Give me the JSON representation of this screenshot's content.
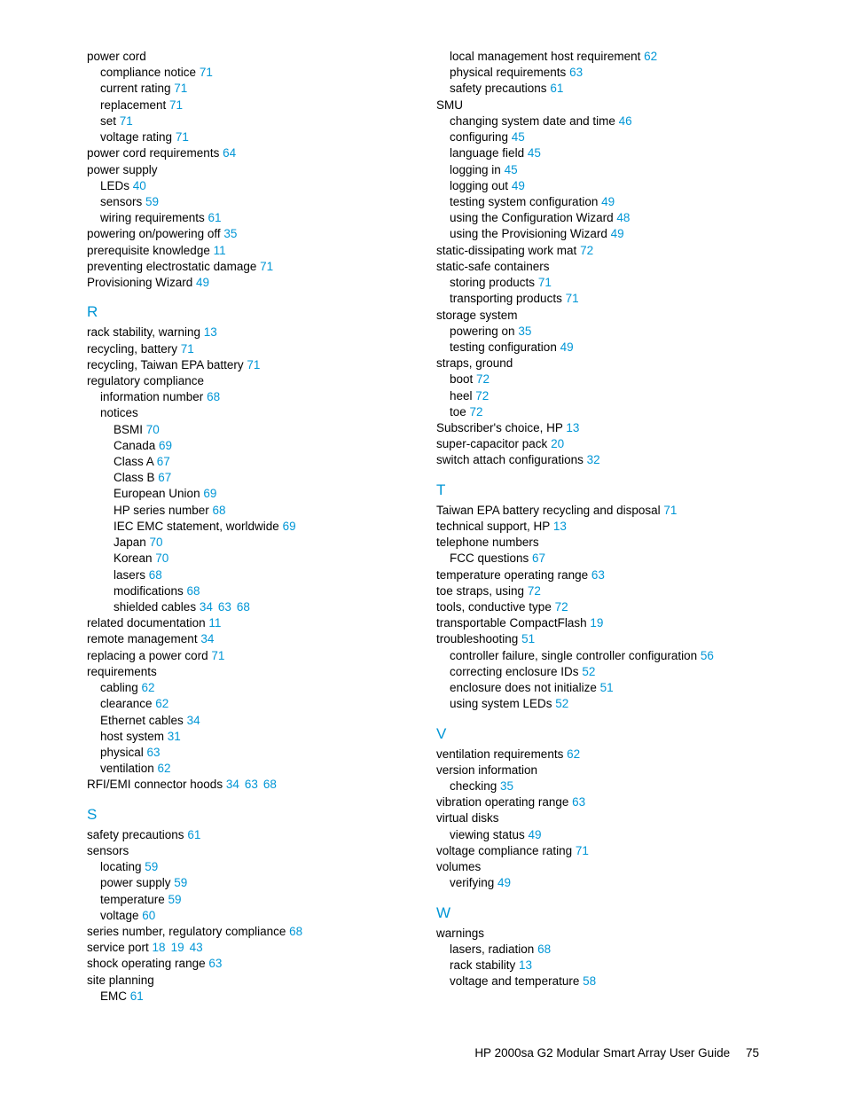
{
  "footer": {
    "title": "HP 2000sa G2 Modular Smart Array User Guide",
    "page": "75"
  },
  "link_color": "#0096d6",
  "text_color": "#000000",
  "background_color": "#ffffff",
  "section_fontsize": 17,
  "body_fontsize": 13.5,
  "left": [
    {
      "t": "power cord",
      "lv": 0
    },
    {
      "t": "compliance notice",
      "lv": 1,
      "p": [
        "71"
      ]
    },
    {
      "t": "current rating",
      "lv": 1,
      "p": [
        "71"
      ]
    },
    {
      "t": "replacement",
      "lv": 1,
      "p": [
        "71"
      ]
    },
    {
      "t": "set",
      "lv": 1,
      "p": [
        "71"
      ]
    },
    {
      "t": "voltage rating",
      "lv": 1,
      "p": [
        "71"
      ]
    },
    {
      "t": "power cord requirements",
      "lv": 0,
      "p": [
        "64"
      ]
    },
    {
      "t": "power supply",
      "lv": 0
    },
    {
      "t": "LEDs",
      "lv": 1,
      "p": [
        "40"
      ]
    },
    {
      "t": "sensors",
      "lv": 1,
      "p": [
        "59"
      ]
    },
    {
      "t": "wiring requirements",
      "lv": 1,
      "p": [
        "61"
      ]
    },
    {
      "t": "powering on/powering off",
      "lv": 0,
      "p": [
        "35"
      ]
    },
    {
      "t": "prerequisite knowledge",
      "lv": 0,
      "p": [
        "11"
      ]
    },
    {
      "t": "preventing electrostatic damage",
      "lv": 0,
      "p": [
        "71"
      ]
    },
    {
      "t": "Provisioning Wizard",
      "lv": 0,
      "p": [
        "49"
      ]
    },
    {
      "head": "R"
    },
    {
      "t": "rack stability, warning",
      "lv": 0,
      "p": [
        "13"
      ]
    },
    {
      "t": "recycling, battery",
      "lv": 0,
      "p": [
        "71"
      ]
    },
    {
      "t": "recycling, Taiwan EPA battery",
      "lv": 0,
      "p": [
        "71"
      ]
    },
    {
      "t": "regulatory compliance",
      "lv": 0
    },
    {
      "t": "information number",
      "lv": 1,
      "p": [
        "68"
      ]
    },
    {
      "t": "notices",
      "lv": 1
    },
    {
      "t": "BSMI",
      "lv": 2,
      "p": [
        "70"
      ]
    },
    {
      "t": "Canada",
      "lv": 2,
      "p": [
        "69"
      ]
    },
    {
      "t": "Class A",
      "lv": 2,
      "p": [
        "67"
      ]
    },
    {
      "t": "Class B",
      "lv": 2,
      "p": [
        "67"
      ]
    },
    {
      "t": "European Union",
      "lv": 2,
      "p": [
        "69"
      ]
    },
    {
      "t": "HP series number",
      "lv": 2,
      "p": [
        "68"
      ]
    },
    {
      "t": "IEC EMC statement, worldwide",
      "lv": 2,
      "p": [
        "69"
      ]
    },
    {
      "t": "Japan",
      "lv": 2,
      "p": [
        "70"
      ]
    },
    {
      "t": "Korean",
      "lv": 2,
      "p": [
        "70"
      ]
    },
    {
      "t": "lasers",
      "lv": 2,
      "p": [
        "68"
      ]
    },
    {
      "t": "modifications",
      "lv": 2,
      "p": [
        "68"
      ]
    },
    {
      "t": "shielded cables",
      "lv": 2,
      "p": [
        "34",
        "63",
        "68"
      ]
    },
    {
      "t": "related documentation",
      "lv": 0,
      "p": [
        "11"
      ]
    },
    {
      "t": "remote management",
      "lv": 0,
      "p": [
        "34"
      ]
    },
    {
      "t": "replacing a power cord",
      "lv": 0,
      "p": [
        "71"
      ]
    },
    {
      "t": "requirements",
      "lv": 0
    },
    {
      "t": "cabling",
      "lv": 1,
      "p": [
        "62"
      ]
    },
    {
      "t": "clearance",
      "lv": 1,
      "p": [
        "62"
      ]
    },
    {
      "t": "Ethernet cables",
      "lv": 1,
      "p": [
        "34"
      ]
    },
    {
      "t": "host system",
      "lv": 1,
      "p": [
        "31"
      ]
    },
    {
      "t": "physical",
      "lv": 1,
      "p": [
        "63"
      ]
    },
    {
      "t": "ventilation",
      "lv": 1,
      "p": [
        "62"
      ]
    },
    {
      "t": "RFI/EMI connector hoods",
      "lv": 0,
      "p": [
        "34",
        "63",
        "68"
      ]
    },
    {
      "head": "S"
    },
    {
      "t": "safety precautions",
      "lv": 0,
      "p": [
        "61"
      ]
    },
    {
      "t": "sensors",
      "lv": 0
    },
    {
      "t": "locating",
      "lv": 1,
      "p": [
        "59"
      ]
    },
    {
      "t": "power supply",
      "lv": 1,
      "p": [
        "59"
      ]
    },
    {
      "t": "temperature",
      "lv": 1,
      "p": [
        "59"
      ]
    },
    {
      "t": "voltage",
      "lv": 1,
      "p": [
        "60"
      ]
    },
    {
      "t": "series number, regulatory compliance",
      "lv": 0,
      "p": [
        "68"
      ]
    },
    {
      "t": "service port",
      "lv": 0,
      "p": [
        "18",
        "19",
        "43"
      ]
    },
    {
      "t": "shock operating range",
      "lv": 0,
      "p": [
        "63"
      ]
    },
    {
      "t": "site planning",
      "lv": 0
    },
    {
      "t": "EMC",
      "lv": 1,
      "p": [
        "61"
      ]
    }
  ],
  "right": [
    {
      "t": "local management host requirement",
      "lv": 1,
      "p": [
        "62"
      ]
    },
    {
      "t": "physical requirements",
      "lv": 1,
      "p": [
        "63"
      ]
    },
    {
      "t": "safety precautions",
      "lv": 1,
      "p": [
        "61"
      ]
    },
    {
      "t": "SMU",
      "lv": 0
    },
    {
      "t": "changing system date and time",
      "lv": 1,
      "p": [
        "46"
      ]
    },
    {
      "t": "configuring",
      "lv": 1,
      "p": [
        "45"
      ]
    },
    {
      "t": "language field",
      "lv": 1,
      "p": [
        "45"
      ]
    },
    {
      "t": "logging in",
      "lv": 1,
      "p": [
        "45"
      ]
    },
    {
      "t": "logging out",
      "lv": 1,
      "p": [
        "49"
      ]
    },
    {
      "t": "testing system configuration",
      "lv": 1,
      "p": [
        "49"
      ]
    },
    {
      "t": "using the Configuration Wizard",
      "lv": 1,
      "p": [
        "48"
      ]
    },
    {
      "t": "using the Provisioning Wizard",
      "lv": 1,
      "p": [
        "49"
      ]
    },
    {
      "t": "static-dissipating work mat",
      "lv": 0,
      "p": [
        "72"
      ]
    },
    {
      "t": "static-safe containers",
      "lv": 0
    },
    {
      "t": "storing products",
      "lv": 1,
      "p": [
        "71"
      ]
    },
    {
      "t": "transporting products",
      "lv": 1,
      "p": [
        "71"
      ]
    },
    {
      "t": "storage system",
      "lv": 0
    },
    {
      "t": "powering on",
      "lv": 1,
      "p": [
        "35"
      ]
    },
    {
      "t": "testing configuration",
      "lv": 1,
      "p": [
        "49"
      ]
    },
    {
      "t": "straps, ground",
      "lv": 0
    },
    {
      "t": "boot",
      "lv": 1,
      "p": [
        "72"
      ]
    },
    {
      "t": "heel",
      "lv": 1,
      "p": [
        "72"
      ]
    },
    {
      "t": "toe",
      "lv": 1,
      "p": [
        "72"
      ]
    },
    {
      "t": "Subscriber's choice, HP",
      "lv": 0,
      "p": [
        "13"
      ]
    },
    {
      "t": "super-capacitor pack",
      "lv": 0,
      "p": [
        "20"
      ]
    },
    {
      "t": "switch attach configurations",
      "lv": 0,
      "p": [
        "32"
      ]
    },
    {
      "head": "T"
    },
    {
      "t": "Taiwan EPA battery recycling and disposal",
      "lv": 0,
      "p": [
        "71"
      ]
    },
    {
      "t": "technical support, HP",
      "lv": 0,
      "p": [
        "13"
      ]
    },
    {
      "t": "telephone numbers",
      "lv": 0
    },
    {
      "t": "FCC questions",
      "lv": 1,
      "p": [
        "67"
      ]
    },
    {
      "t": "temperature operating range",
      "lv": 0,
      "p": [
        "63"
      ]
    },
    {
      "t": "toe straps, using",
      "lv": 0,
      "p": [
        "72"
      ]
    },
    {
      "t": "tools, conductive type",
      "lv": 0,
      "p": [
        "72"
      ]
    },
    {
      "t": "transportable CompactFlash",
      "lv": 0,
      "p": [
        "19"
      ]
    },
    {
      "t": "troubleshooting",
      "lv": 0,
      "p": [
        "51"
      ]
    },
    {
      "t": "controller failure, single controller configuration",
      "lv": 1,
      "p": [
        "56"
      ]
    },
    {
      "t": "correcting enclosure IDs",
      "lv": 1,
      "p": [
        "52"
      ]
    },
    {
      "t": "enclosure does not initialize",
      "lv": 1,
      "p": [
        "51"
      ]
    },
    {
      "t": "using system LEDs",
      "lv": 1,
      "p": [
        "52"
      ]
    },
    {
      "head": "V"
    },
    {
      "t": "ventilation requirements",
      "lv": 0,
      "p": [
        "62"
      ]
    },
    {
      "t": "version information",
      "lv": 0
    },
    {
      "t": "checking",
      "lv": 1,
      "p": [
        "35"
      ]
    },
    {
      "t": "vibration operating range",
      "lv": 0,
      "p": [
        "63"
      ]
    },
    {
      "t": "virtual disks",
      "lv": 0
    },
    {
      "t": "viewing status",
      "lv": 1,
      "p": [
        "49"
      ]
    },
    {
      "t": "voltage compliance rating",
      "lv": 0,
      "p": [
        "71"
      ]
    },
    {
      "t": "volumes",
      "lv": 0
    },
    {
      "t": "verifying",
      "lv": 1,
      "p": [
        "49"
      ]
    },
    {
      "head": "W"
    },
    {
      "t": "warnings",
      "lv": 0
    },
    {
      "t": "lasers, radiation",
      "lv": 1,
      "p": [
        "68"
      ]
    },
    {
      "t": "rack stability",
      "lv": 1,
      "p": [
        "13"
      ]
    },
    {
      "t": "voltage and temperature",
      "lv": 1,
      "p": [
        "58"
      ]
    }
  ]
}
